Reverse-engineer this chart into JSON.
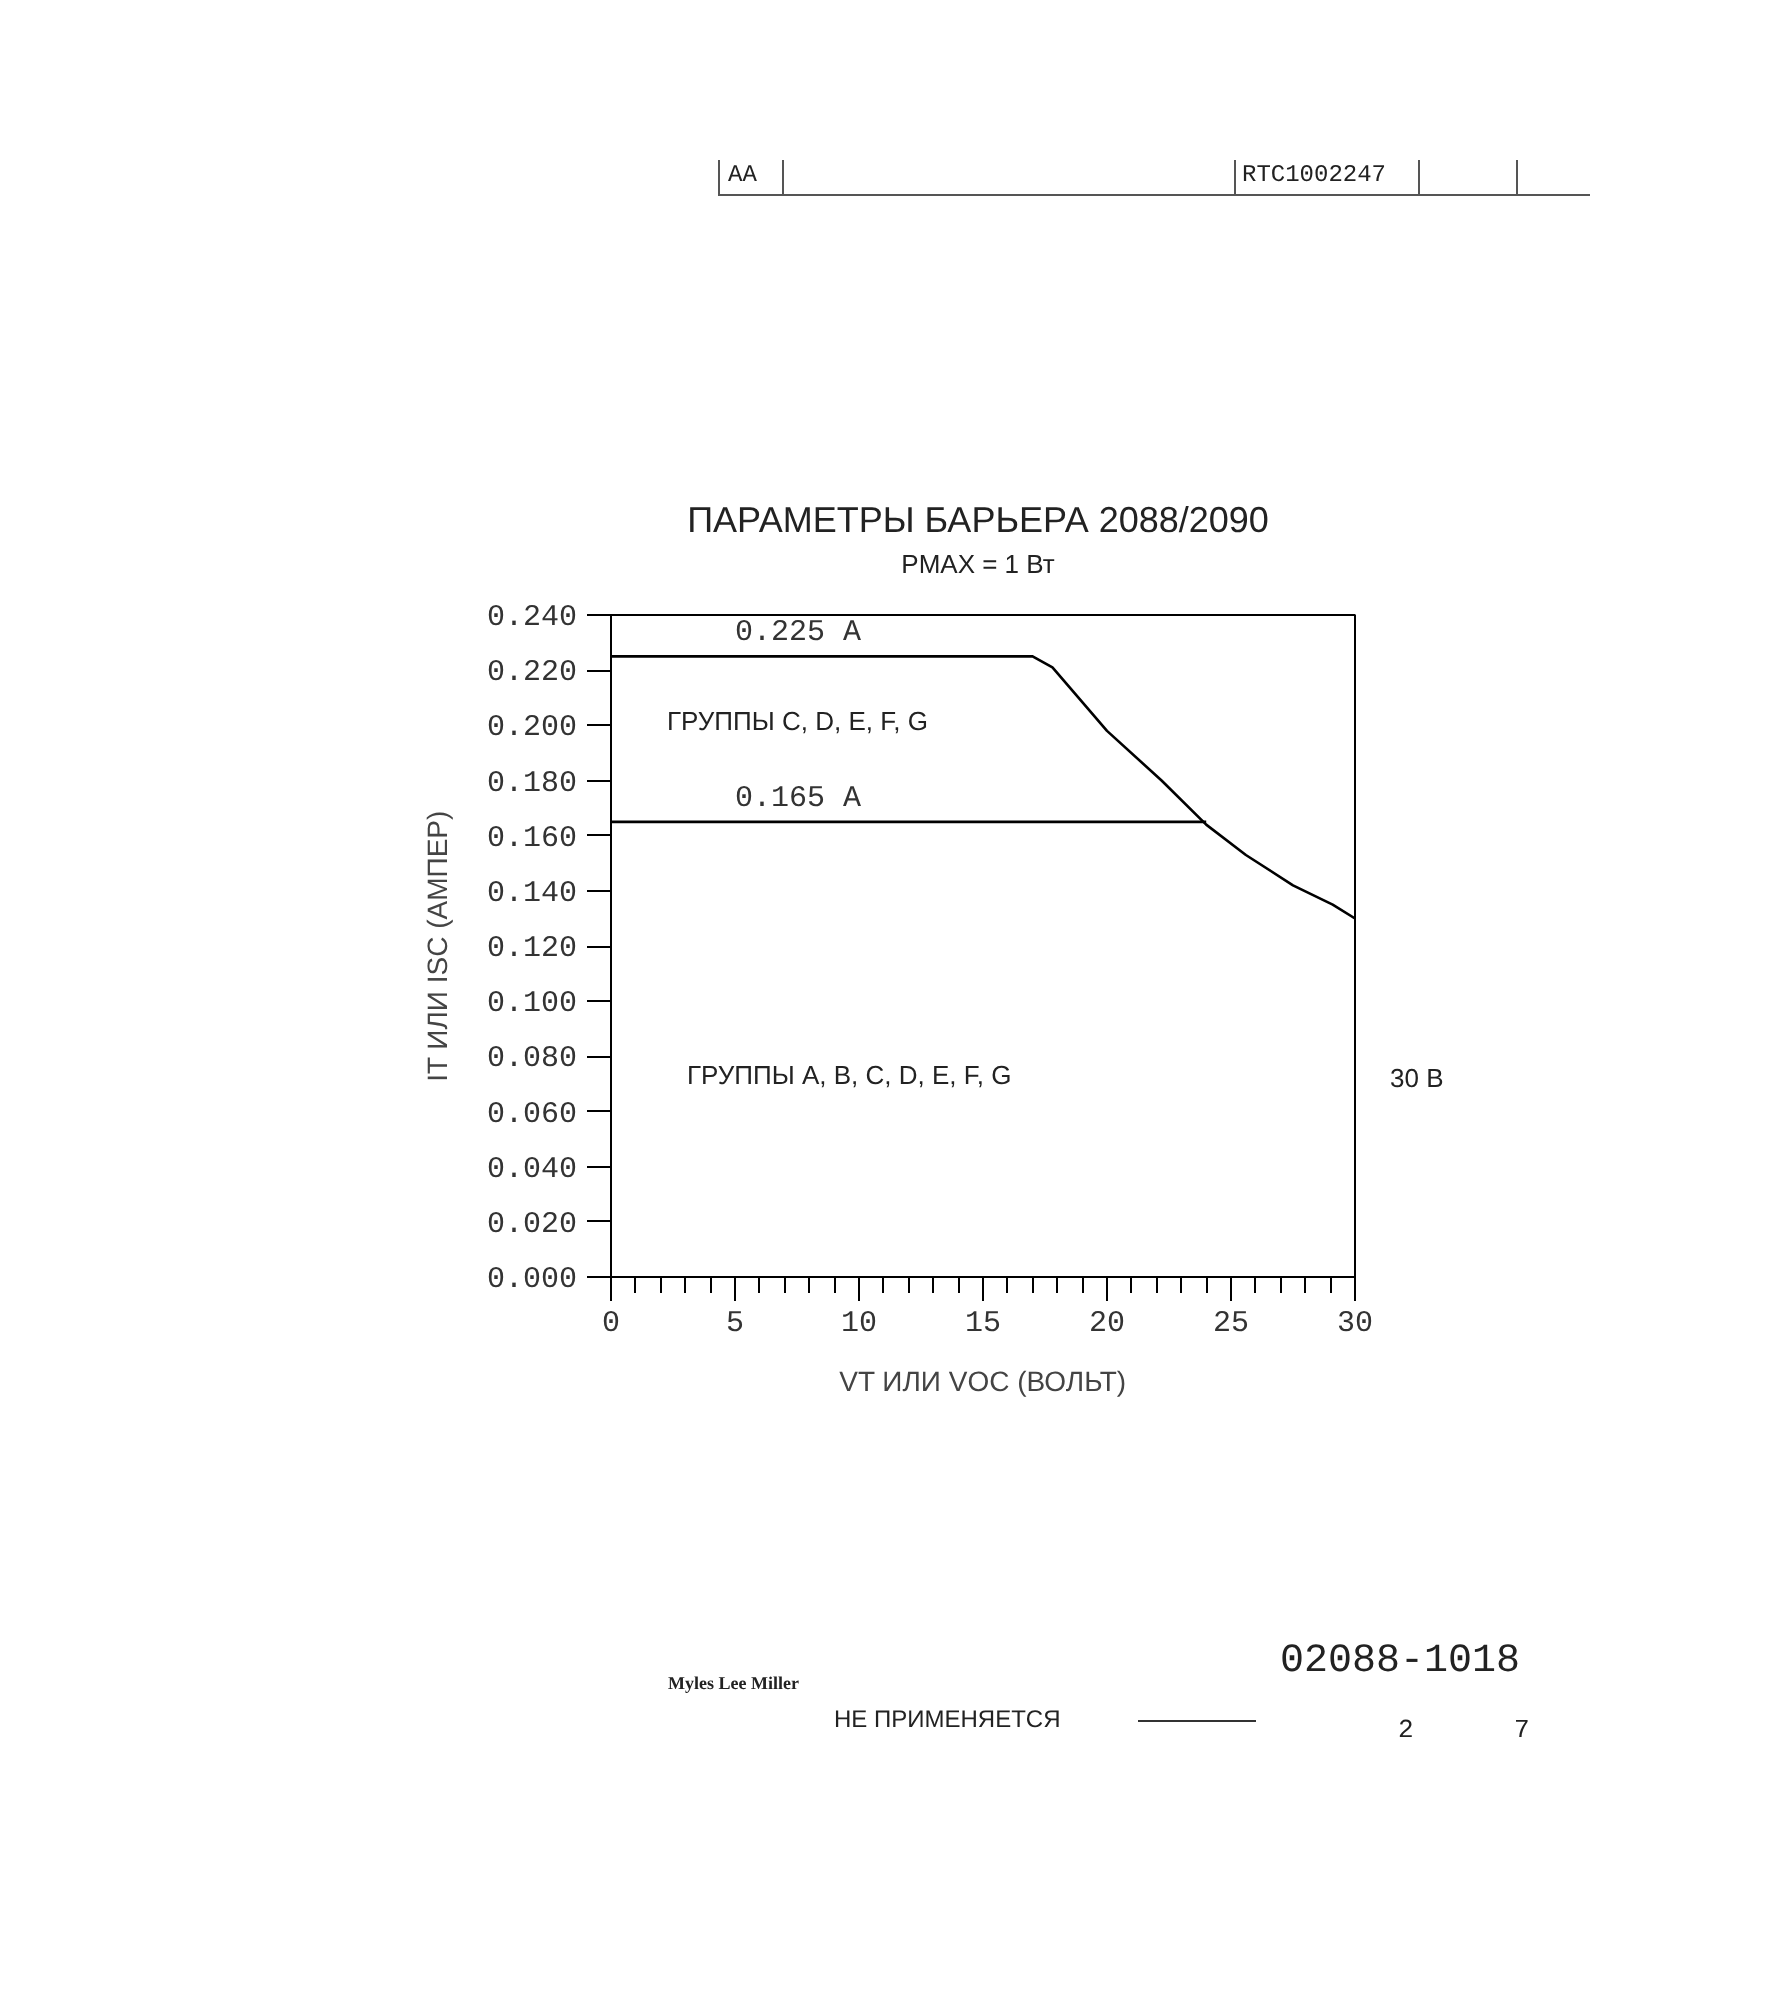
{
  "chart_data": {
    "type": "line",
    "title": "ПАРАМЕТРЫ БАРЬЕРА 2088/2090",
    "subtitle": "PMAX = 1 Вт",
    "xlabel": "VT ИЛИ VOC (ВОЛЬТ)",
    "ylabel": "IT ИЛИ ISC (АМПЕР)",
    "xlim": [
      0,
      30
    ],
    "ylim": [
      0,
      0.24
    ],
    "xticks": [
      0,
      {
        "value": 1,
        "label": null
      },
      {
        "value": 2,
        "label": null
      },
      {
        "value": 3,
        "label": null
      },
      {
        "value": 4,
        "label": null
      },
      5,
      {
        "value": 6,
        "label": null
      },
      {
        "value": 7,
        "label": null
      },
      {
        "value": 8,
        "label": null
      },
      {
        "value": 9,
        "label": null
      },
      10,
      {
        "value": 11,
        "label": null
      },
      {
        "value": 12,
        "label": null
      },
      {
        "value": 13,
        "label": null
      },
      {
        "value": 14,
        "label": null
      },
      15,
      {
        "value": 16,
        "label": null
      },
      {
        "value": 17,
        "label": null
      },
      {
        "value": 18,
        "label": null
      },
      {
        "value": 19,
        "label": null
      },
      20,
      {
        "value": 21,
        "label": null
      },
      {
        "value": 22,
        "label": null
      },
      {
        "value": 23,
        "label": null
      },
      {
        "value": 24,
        "label": null
      },
      25,
      {
        "value": 26,
        "label": null
      },
      {
        "value": 27,
        "label": null
      },
      {
        "value": 28,
        "label": null
      },
      {
        "value": 29,
        "label": null
      },
      30
    ],
    "yticks": [
      {
        "value": 0,
        "label": "0.000"
      },
      {
        "value": 0.02,
        "label": "0.020"
      },
      {
        "value": 0.04,
        "label": "0.040"
      },
      {
        "value": 0.06,
        "label": "0.060"
      },
      {
        "value": 0.08,
        "label": "0.080"
      },
      {
        "value": 0.1,
        "label": "0.100"
      },
      {
        "value": 0.12,
        "label": "0.120"
      },
      {
        "value": 0.14,
        "label": "0.140"
      },
      {
        "value": 0.16,
        "label": "0.160"
      },
      {
        "value": 0.18,
        "label": "0.180"
      },
      {
        "value": 0.2,
        "label": "0.200"
      },
      {
        "value": 0.22,
        "label": "0.220"
      },
      {
        "value": 0.24,
        "label": "0.240"
      }
    ],
    "grid": false,
    "marker": "none",
    "line_style": "solid",
    "series": [
      {
        "name": "0.225 A",
        "color": "#000000",
        "x": [
          0,
          17,
          17.8,
          20,
          22.2,
          24,
          25.6,
          27.5,
          29.1,
          30
        ],
        "values": [
          0.225,
          0.225,
          0.221,
          0.198,
          0.18,
          0.164,
          0.153,
          0.142,
          0.135,
          0.13
        ]
      },
      {
        "name": "0.165 A",
        "color": "#000000",
        "x": [
          0,
          24
        ],
        "values": [
          0.165,
          0.165
        ]
      }
    ],
    "annotations": [
      "ГРУППЫ C, D, E, F, G",
      "ГРУППЫ A, B, C, D, E, F, G",
      "30 В",
      "AA",
      "RTC1002247",
      "Myles Lee Miller",
      "НЕ ПРИМЕНЯЕТСЯ",
      "02088-1018",
      "2",
      "7"
    ]
  }
}
